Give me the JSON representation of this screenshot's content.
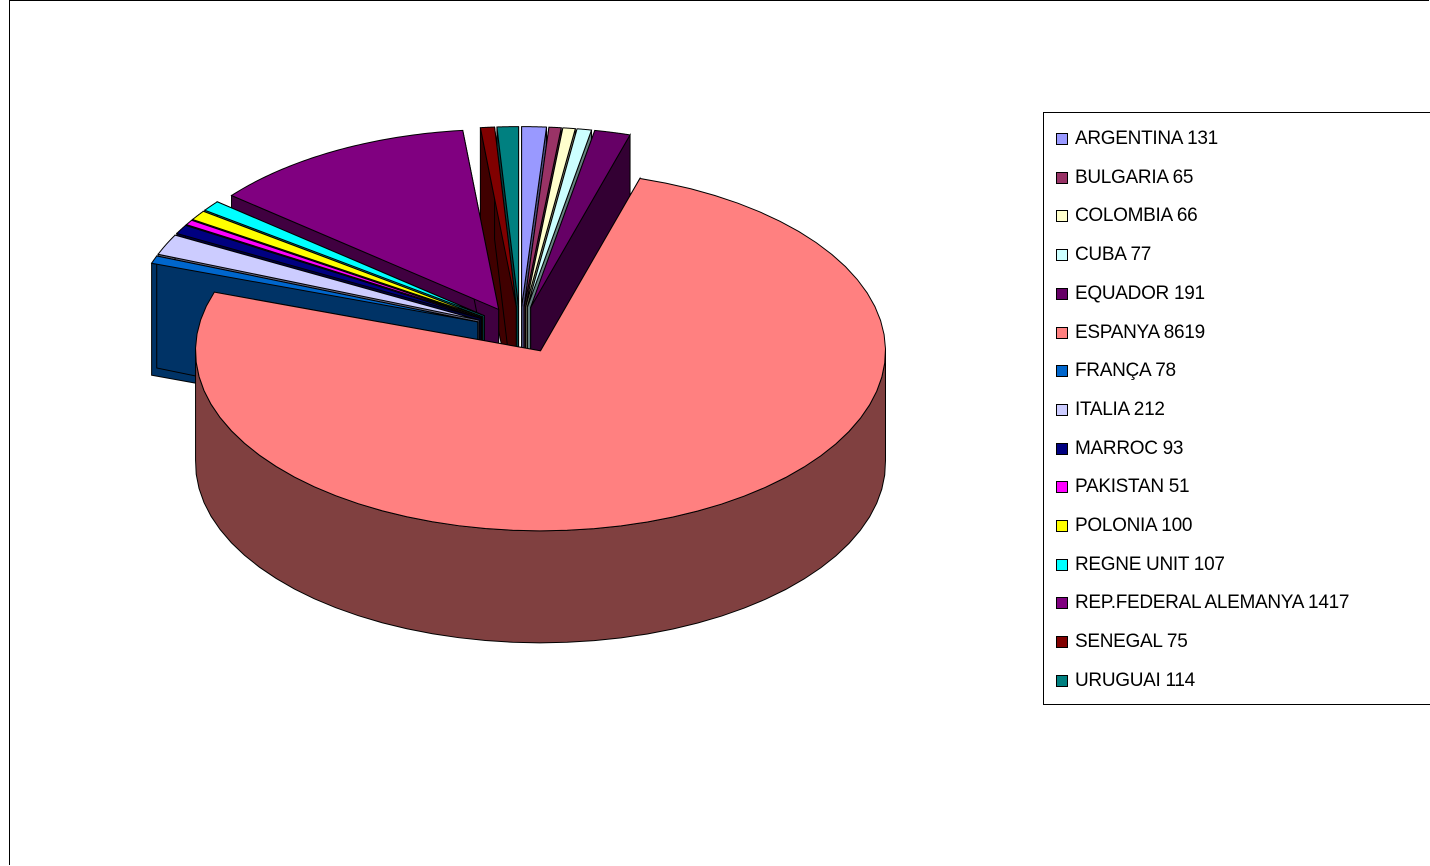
{
  "chart_data": {
    "type": "pie",
    "style": "3d-exploded",
    "legend_position": "right",
    "slices": [
      {
        "label": "ARGENTINA 131",
        "value": 131,
        "color": "#9999FF"
      },
      {
        "label": "BULGARIA 65",
        "value": 65,
        "color": "#993366"
      },
      {
        "label": "COLOMBIA 66",
        "value": 66,
        "color": "#FFFFCC"
      },
      {
        "label": "CUBA 77",
        "value": 77,
        "color": "#CCFFFF"
      },
      {
        "label": "EQUADOR 191",
        "value": 191,
        "color": "#660066"
      },
      {
        "label": "ESPANYA 8619",
        "value": 8619,
        "color": "#FF8080"
      },
      {
        "label": "FRANÇA 78",
        "value": 78,
        "color": "#0066CC"
      },
      {
        "label": "ITALIA 212",
        "value": 212,
        "color": "#CCCCFF"
      },
      {
        "label": "MARROC 93",
        "value": 93,
        "color": "#000080"
      },
      {
        "label": "PAKISTAN 51",
        "value": 51,
        "color": "#FF00FF"
      },
      {
        "label": "POLONIA 100",
        "value": 100,
        "color": "#FFFF00"
      },
      {
        "label": "REGNE UNIT 107",
        "value": 107,
        "color": "#00FFFF"
      },
      {
        "label": "REP.FEDERAL ALEMANYA 1417",
        "value": 1417,
        "color": "#800080"
      },
      {
        "label": "SENEGAL 75",
        "value": 75,
        "color": "#800000"
      },
      {
        "label": "URUGUAI 114",
        "value": 114,
        "color": "#008080"
      }
    ]
  }
}
